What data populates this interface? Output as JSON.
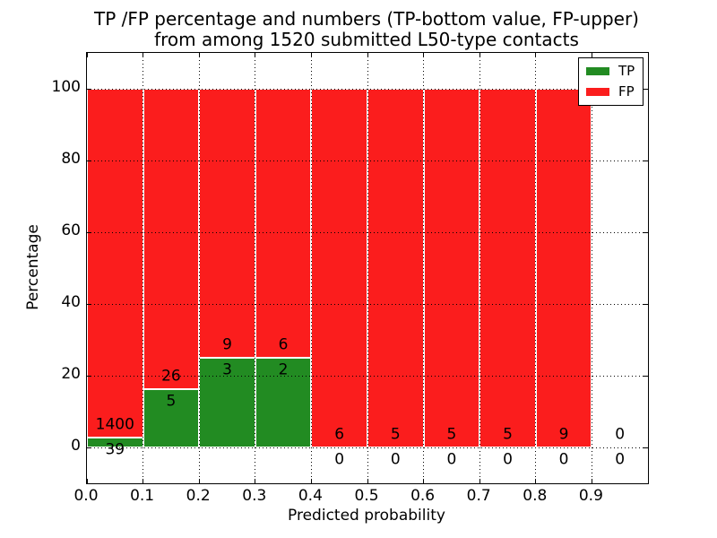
{
  "title": {
    "line1": "TP /FP percentage and numbers (TP-bottom value, FP-upper)",
    "line2": "from among 1520 submitted L50-type contacts"
  },
  "axes": {
    "xlabel": "Predicted probability",
    "ylabel": "Percentage",
    "xtick_labels": [
      "0.0",
      "0.1",
      "0.2",
      "0.3",
      "0.4",
      "0.5",
      "0.6",
      "0.7",
      "0.8",
      "0.9"
    ],
    "ytick_labels": [
      "0",
      "20",
      "40",
      "60",
      "80",
      "100"
    ]
  },
  "legend": {
    "items": [
      {
        "label": "TP",
        "color": "#228b22"
      },
      {
        "label": "FP",
        "color": "#fb1d1d"
      }
    ]
  },
  "colors": {
    "tp_green": "#228b22",
    "fp_red": "#fb1d1d",
    "grid": "#000000",
    "background": "#ffffff"
  },
  "chart_data": {
    "type": "bar",
    "stacked": true,
    "title": "TP /FP percentage and numbers (TP-bottom value, FP-upper) from among 1520 submitted L50-type contacts",
    "xlabel": "Predicted probability",
    "ylabel": "Percentage",
    "total_contacts": 1520,
    "bins": [
      "0.0-0.1",
      "0.1-0.2",
      "0.2-0.3",
      "0.3-0.4",
      "0.4-0.5",
      "0.5-0.6",
      "0.6-0.7",
      "0.7-0.8",
      "0.8-0.9",
      "0.9-1.0"
    ],
    "series": [
      {
        "name": "TP",
        "color": "#228b22",
        "counts": [
          39,
          5,
          3,
          2,
          0,
          0,
          0,
          0,
          0,
          0
        ],
        "pct": [
          2.71,
          16.13,
          25,
          25,
          0,
          0,
          0,
          0,
          0,
          0
        ]
      },
      {
        "name": "FP",
        "color": "#fb1d1d",
        "counts": [
          1400,
          26,
          9,
          6,
          6,
          5,
          5,
          5,
          9,
          0
        ],
        "pct": [
          97.29,
          83.87,
          75,
          75,
          100,
          100,
          100,
          100,
          100,
          0
        ]
      }
    ],
    "xticks": [
      0.0,
      0.1,
      0.2,
      0.3,
      0.4,
      0.5,
      0.6,
      0.7,
      0.8,
      0.9
    ],
    "yticks": [
      0,
      20,
      40,
      60,
      80,
      100
    ],
    "xlim": [
      0.0,
      1.0
    ],
    "ylim": [
      -10,
      110
    ],
    "grid": "dotted",
    "legend_position": "upper right",
    "annotation_note": "FP count printed above green top, TP count printed below green top, per bin"
  }
}
